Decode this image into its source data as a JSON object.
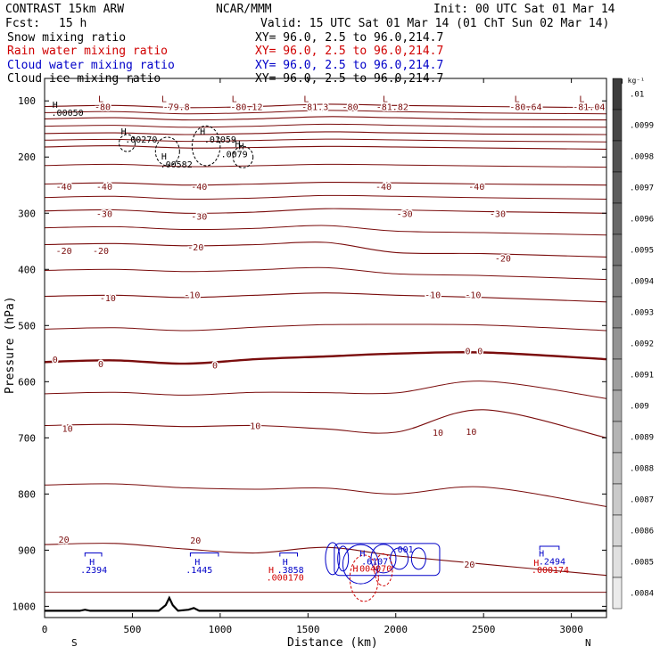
{
  "header": {
    "title": "CONTRAST 15km ARW",
    "org": "NCAR/MMM",
    "init": "Init: 00 UTC Sat 01 Mar 14",
    "fcst_label": "Fcst:",
    "fcst_value": "15 h",
    "valid": "Valid: 15 UTC Sat 01 Mar 14 (01 ChT Sun 02 Mar 14)"
  },
  "fields": [
    {
      "name": "Snow mixing ratio",
      "xy": "XY=  96.0,  2.5 to  96.0,214.7",
      "color": "#000000"
    },
    {
      "name": "Rain water mixing ratio",
      "xy": "XY=  96.0,  2.5 to  96.0,214.7",
      "color": "#d00000"
    },
    {
      "name": "Cloud water mixing ratio",
      "xy": "XY=  96.0,  2.5 to  96.0,214.7",
      "color": "#0000c8"
    },
    {
      "name": "Cloud ice mixing ratio",
      "xy": "XY=  96.0,  2.5 to  96.0,214.7",
      "color": "#000000"
    }
  ],
  "colors": {
    "temp": "#7a0c0c",
    "snow": "#000000",
    "rain": "#d00000",
    "cloud": "#0000c8"
  },
  "chart_data": {
    "type": "line",
    "title": "CONTRAST 15km ARW",
    "xlabel": "Distance (km)",
    "ylabel": "Pressure (hPa)",
    "xlim": [
      0,
      3200
    ],
    "ylim": [
      1020,
      60
    ],
    "x_ticks": [
      0,
      500,
      1000,
      1500,
      2000,
      2500,
      3000
    ],
    "y_ticks": [
      100,
      200,
      300,
      400,
      500,
      600,
      700,
      800,
      900,
      1000
    ],
    "end_labels": {
      "left": "S",
      "right": "N"
    },
    "temperature_contours_C": [
      {
        "level": -80,
        "p": [
          110,
          108,
          112,
          110,
          106,
          108,
          110,
          112
        ]
      },
      {
        "level": -70,
        "p": [
          132,
          130,
          134,
          132,
          128,
          130,
          133,
          134
        ]
      },
      {
        "level": -60,
        "p": [
          158,
          157,
          160,
          158,
          155,
          157,
          159,
          160
        ]
      },
      {
        "level": -50,
        "p": [
          182,
          180,
          184,
          183,
          181,
          182,
          184,
          186
        ]
      },
      {
        "level": -40,
        "p": [
          248,
          246,
          250,
          248,
          245,
          246,
          248,
          250
        ]
      },
      {
        "level": -30,
        "p": [
          296,
          294,
          300,
          298,
          292,
          294,
          297,
          300
        ]
      },
      {
        "level": -20,
        "p": [
          356,
          354,
          358,
          356,
          352,
          370,
          372,
          378
        ]
      },
      {
        "level": -10,
        "p": [
          448,
          446,
          450,
          446,
          442,
          446,
          450,
          458
        ]
      },
      {
        "level": 0,
        "p": [
          565,
          562,
          568,
          560,
          555,
          550,
          548,
          560
        ]
      },
      {
        "level": 10,
        "p": [
          678,
          676,
          680,
          678,
          684,
          690,
          650,
          700
        ]
      },
      {
        "level": 20,
        "p": [
          890,
          888,
          898,
          905,
          895,
          910,
          925,
          945
        ]
      }
    ],
    "x_nodes": [
      0,
      400,
      800,
      1200,
      1600,
      2000,
      2500,
      3200
    ],
    "contour_labels": [
      {
        "text": "-80",
        "x": 330,
        "p": 110
      },
      {
        "text": "-79.8",
        "x": 750,
        "p": 110
      },
      {
        "text": "-80.12",
        "x": 1150,
        "p": 110
      },
      {
        "text": "-81.3",
        "x": 1540,
        "p": 110
      },
      {
        "text": "-80",
        "x": 1740,
        "p": 110
      },
      {
        "text": "-81.82",
        "x": 1980,
        "p": 110
      },
      {
        "text": "-80.64",
        "x": 2740,
        "p": 110
      },
      {
        "text": "-81.04",
        "x": 3100,
        "p": 110
      },
      {
        "text": "-40",
        "x": 110,
        "p": 252
      },
      {
        "text": "-40",
        "x": 340,
        "p": 252
      },
      {
        "text": "-40",
        "x": 880,
        "p": 252
      },
      {
        "text": "-40",
        "x": 1930,
        "p": 252
      },
      {
        "text": "-40",
        "x": 2460,
        "p": 252
      },
      {
        "text": "-30",
        "x": 340,
        "p": 300
      },
      {
        "text": "-30",
        "x": 880,
        "p": 305
      },
      {
        "text": "-30",
        "x": 2050,
        "p": 300
      },
      {
        "text": "-30",
        "x": 2580,
        "p": 300
      },
      {
        "text": "-20",
        "x": 110,
        "p": 366
      },
      {
        "text": "-20",
        "x": 320,
        "p": 366
      },
      {
        "text": "-20",
        "x": 860,
        "p": 360
      },
      {
        "text": "-20",
        "x": 2610,
        "p": 380
      },
      {
        "text": "-10",
        "x": 360,
        "p": 450
      },
      {
        "text": "-10",
        "x": 840,
        "p": 445
      },
      {
        "text": "-10",
        "x": 2210,
        "p": 445
      },
      {
        "text": "-10",
        "x": 2440,
        "p": 445
      },
      {
        "text": "0",
        "x": 60,
        "p": 560
      },
      {
        "text": "0",
        "x": 320,
        "p": 568
      },
      {
        "text": "0",
        "x": 970,
        "p": 570
      },
      {
        "text": "0",
        "x": 2410,
        "p": 545
      },
      {
        "text": "0",
        "x": 2480,
        "p": 545
      },
      {
        "text": "10",
        "x": 130,
        "p": 683
      },
      {
        "text": "10",
        "x": 1200,
        "p": 678
      },
      {
        "text": "10",
        "x": 2240,
        "p": 690
      },
      {
        "text": "10",
        "x": 2430,
        "p": 688
      },
      {
        "text": "20",
        "x": 110,
        "p": 880
      },
      {
        "text": "20",
        "x": 860,
        "p": 882
      },
      {
        "text": "20",
        "x": 2420,
        "p": 925
      }
    ],
    "extrema_labels": [
      {
        "text": "H",
        "x": 60,
        "p": 106,
        "color": "snow"
      },
      {
        "text": ".00050",
        "x": 130,
        "p": 120,
        "color": "snow"
      },
      {
        "text": "L",
        "x": 320,
        "p": 96,
        "color": "temp"
      },
      {
        "text": "L",
        "x": 680,
        "p": 96,
        "color": "temp"
      },
      {
        "text": "L",
        "x": 1080,
        "p": 96,
        "color": "temp"
      },
      {
        "text": "L",
        "x": 1490,
        "p": 96,
        "color": "temp"
      },
      {
        "text": "L",
        "x": 1940,
        "p": 96,
        "color": "temp"
      },
      {
        "text": "L",
        "x": 2690,
        "p": 96,
        "color": "temp"
      },
      {
        "text": "L",
        "x": 3060,
        "p": 96,
        "color": "temp"
      },
      {
        "text": "H",
        "x": 450,
        "p": 154,
        "color": "snow"
      },
      {
        "text": ".00270",
        "x": 550,
        "p": 168,
        "color": "snow"
      },
      {
        "text": "H",
        "x": 900,
        "p": 154,
        "color": "snow"
      },
      {
        "text": ".01059",
        "x": 1000,
        "p": 168,
        "color": "snow"
      },
      {
        "text": "H",
        "x": 1100,
        "p": 176,
        "color": "snow"
      },
      {
        "text": "H",
        "x": 1120,
        "p": 180,
        "color": "snow"
      },
      {
        "text": ".0079",
        "x": 1080,
        "p": 194,
        "color": "snow"
      },
      {
        "text": "H",
        "x": 680,
        "p": 198,
        "color": "snow"
      },
      {
        "text": ".00582",
        "x": 750,
        "p": 212,
        "color": "snow"
      },
      {
        "text": "H",
        "x": 270,
        "p": 920,
        "color": "cloud"
      },
      {
        "text": ".2394",
        "x": 280,
        "p": 934,
        "color": "cloud"
      },
      {
        "text": "H",
        "x": 870,
        "p": 920,
        "color": "cloud"
      },
      {
        "text": ".1445",
        "x": 880,
        "p": 934,
        "color": "cloud"
      },
      {
        "text": "H",
        "x": 1370,
        "p": 920,
        "color": "cloud"
      },
      {
        "text": ".3858",
        "x": 1400,
        "p": 934,
        "color": "cloud"
      },
      {
        "text": "H",
        "x": 1290,
        "p": 934,
        "color": "rain"
      },
      {
        "text": ".000170",
        "x": 1370,
        "p": 948,
        "color": "rain"
      },
      {
        "text": ".001",
        "x": 2040,
        "p": 898,
        "color": "cloud"
      },
      {
        "text": "H",
        "x": 1810,
        "p": 905,
        "color": "cloud"
      },
      {
        "text": ".6107",
        "x": 1880,
        "p": 919,
        "color": "cloud"
      },
      {
        "text": "H",
        "x": 1770,
        "p": 932,
        "color": "rain"
      },
      {
        "text": ".004070",
        "x": 1870,
        "p": 932,
        "color": "rain"
      },
      {
        "text": "H",
        "x": 2830,
        "p": 905,
        "color": "cloud"
      },
      {
        "text": ".2494",
        "x": 2890,
        "p": 919,
        "color": "cloud"
      },
      {
        "text": "H",
        "x": 2800,
        "p": 922,
        "color": "rain"
      },
      {
        "text": ".000174",
        "x": 2880,
        "p": 934,
        "color": "rain"
      }
    ],
    "colorbar": {
      "unit": "g kg⁻¹",
      "levels": [
        ".01",
        ".0099",
        ".0098",
        ".0097",
        ".0096",
        ".0095",
        ".0094",
        ".0093",
        ".0092",
        ".0091",
        ".009",
        ".0089",
        ".0088",
        ".0087",
        ".0086",
        ".0085",
        ".0084"
      ]
    },
    "terrain_km": [
      [
        0,
        1008
      ],
      [
        200,
        1008
      ],
      [
        230,
        1006
      ],
      [
        260,
        1008
      ],
      [
        650,
        1008
      ],
      [
        690,
        998
      ],
      [
        710,
        985
      ],
      [
        730,
        998
      ],
      [
        760,
        1008
      ],
      [
        820,
        1006
      ],
      [
        850,
        1003
      ],
      [
        880,
        1008
      ],
      [
        3200,
        1008
      ]
    ]
  }
}
